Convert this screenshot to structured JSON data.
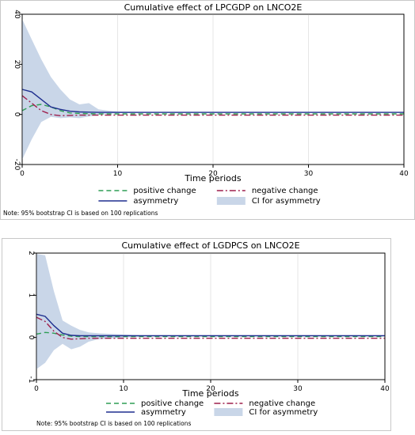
{
  "charts": [
    {
      "chart_data": {
        "type": "line",
        "title": "Cumulative effect of LPCGDP on LNCO2E",
        "xlabel": "Time periods",
        "ylabel": "",
        "xlim": [
          0,
          40
        ],
        "ylim": [
          -20,
          40
        ],
        "xticks": [
          0,
          10,
          20,
          30,
          40
        ],
        "yticks": [
          -20,
          0,
          20,
          40
        ],
        "grid": "vertical",
        "legend_position": "bottom",
        "x": [
          0,
          1,
          2,
          3,
          4,
          5,
          6,
          7,
          8,
          9,
          10,
          12,
          15,
          20,
          25,
          30,
          35,
          40
        ],
        "series": [
          {
            "name": "positive change",
            "style": "dashed",
            "color": "#2e9e55",
            "values": [
              1.5,
              3.5,
              4.0,
              3.0,
              1.5,
              0.6,
              0.4,
              0.3,
              0.2,
              0.2,
              0.2,
              0.2,
              0.2,
              0.2,
              0.2,
              0.2,
              0.2,
              0.2
            ]
          },
          {
            "name": "negative change",
            "style": "dashdot",
            "color": "#9e1f4c",
            "values": [
              7.5,
              4.5,
              1.5,
              0.0,
              -0.5,
              -0.4,
              -0.3,
              -0.3,
              -0.3,
              -0.3,
              -0.3,
              -0.3,
              -0.3,
              -0.3,
              -0.3,
              -0.3,
              -0.3,
              -0.3
            ]
          },
          {
            "name": "asymmetry",
            "style": "solid",
            "color": "#1f2f8f",
            "values": [
              10,
              9,
              6,
              3,
              2,
              1.3,
              1.0,
              0.9,
              0.8,
              0.8,
              0.8,
              0.8,
              0.8,
              0.8,
              0.8,
              0.8,
              0.8,
              0.8
            ]
          }
        ],
        "ci": {
          "name": "CI for asymmetry",
          "color": "#c9d6e8",
          "upper": [
            38,
            30,
            22,
            15,
            10,
            6,
            4,
            4.5,
            2,
            1.5,
            1.2,
            1.0,
            1.0,
            1.0,
            1.0,
            1.0,
            1.0,
            1.0
          ],
          "lower": [
            -18,
            -10,
            -3,
            -1,
            -1.5,
            -1.2,
            -1.5,
            -0.8,
            -0.2,
            0.3,
            0.5,
            0.6,
            0.6,
            0.6,
            0.6,
            0.6,
            0.6,
            0.6
          ]
        }
      },
      "note": "Note: 95% bootstrap CI is based on 100 replications"
    },
    {
      "chart_data": {
        "type": "line",
        "title": "Cumulative effect of LGDPCS on LNCO2E",
        "xlabel": "Time periods",
        "ylabel": "",
        "xlim": [
          0,
          40
        ],
        "ylim": [
          -1,
          2
        ],
        "xticks": [
          0,
          10,
          20,
          30,
          40
        ],
        "yticks": [
          -1,
          0,
          1,
          2
        ],
        "grid": "vertical",
        "legend_position": "bottom",
        "x": [
          0,
          1,
          2,
          3,
          4,
          5,
          6,
          7,
          8,
          9,
          10,
          12,
          15,
          20,
          25,
          30,
          35,
          40
        ],
        "series": [
          {
            "name": "positive change",
            "style": "dashed",
            "color": "#2e9e55",
            "values": [
              0.08,
              0.12,
              0.1,
              0.06,
              0.03,
              0.02,
              0.02,
              0.02,
              0.02,
              0.02,
              0.02,
              0.02,
              0.02,
              0.02,
              0.02,
              0.02,
              0.02,
              0.02
            ]
          },
          {
            "name": "negative change",
            "style": "dashdot",
            "color": "#9e1f4c",
            "values": [
              0.48,
              0.38,
              0.15,
              0.0,
              -0.04,
              -0.03,
              -0.02,
              -0.02,
              -0.02,
              -0.02,
              -0.02,
              -0.02,
              -0.02,
              -0.02,
              -0.02,
              -0.02,
              -0.02,
              -0.02
            ]
          },
          {
            "name": "asymmetry",
            "style": "solid",
            "color": "#1f2f8f",
            "values": [
              0.55,
              0.5,
              0.28,
              0.1,
              0.05,
              0.04,
              0.04,
              0.04,
              0.04,
              0.04,
              0.04,
              0.04,
              0.04,
              0.04,
              0.04,
              0.04,
              0.04,
              0.04
            ]
          }
        ],
        "ci": {
          "name": "CI for asymmetry",
          "color": "#c9d6e8",
          "upper": [
            1.98,
            1.95,
            1.1,
            0.4,
            0.28,
            0.18,
            0.12,
            0.1,
            0.09,
            0.08,
            0.07,
            0.05,
            0.05,
            0.05,
            0.05,
            0.05,
            0.05,
            0.05
          ],
          "lower": [
            -0.75,
            -0.6,
            -0.3,
            -0.15,
            -0.28,
            -0.22,
            -0.1,
            -0.05,
            -0.03,
            -0.02,
            0.0,
            0.02,
            0.03,
            0.03,
            0.03,
            0.03,
            0.03,
            0.03
          ]
        }
      },
      "note": "Note: 95% bootstrap CI is based on 100 replications"
    }
  ]
}
